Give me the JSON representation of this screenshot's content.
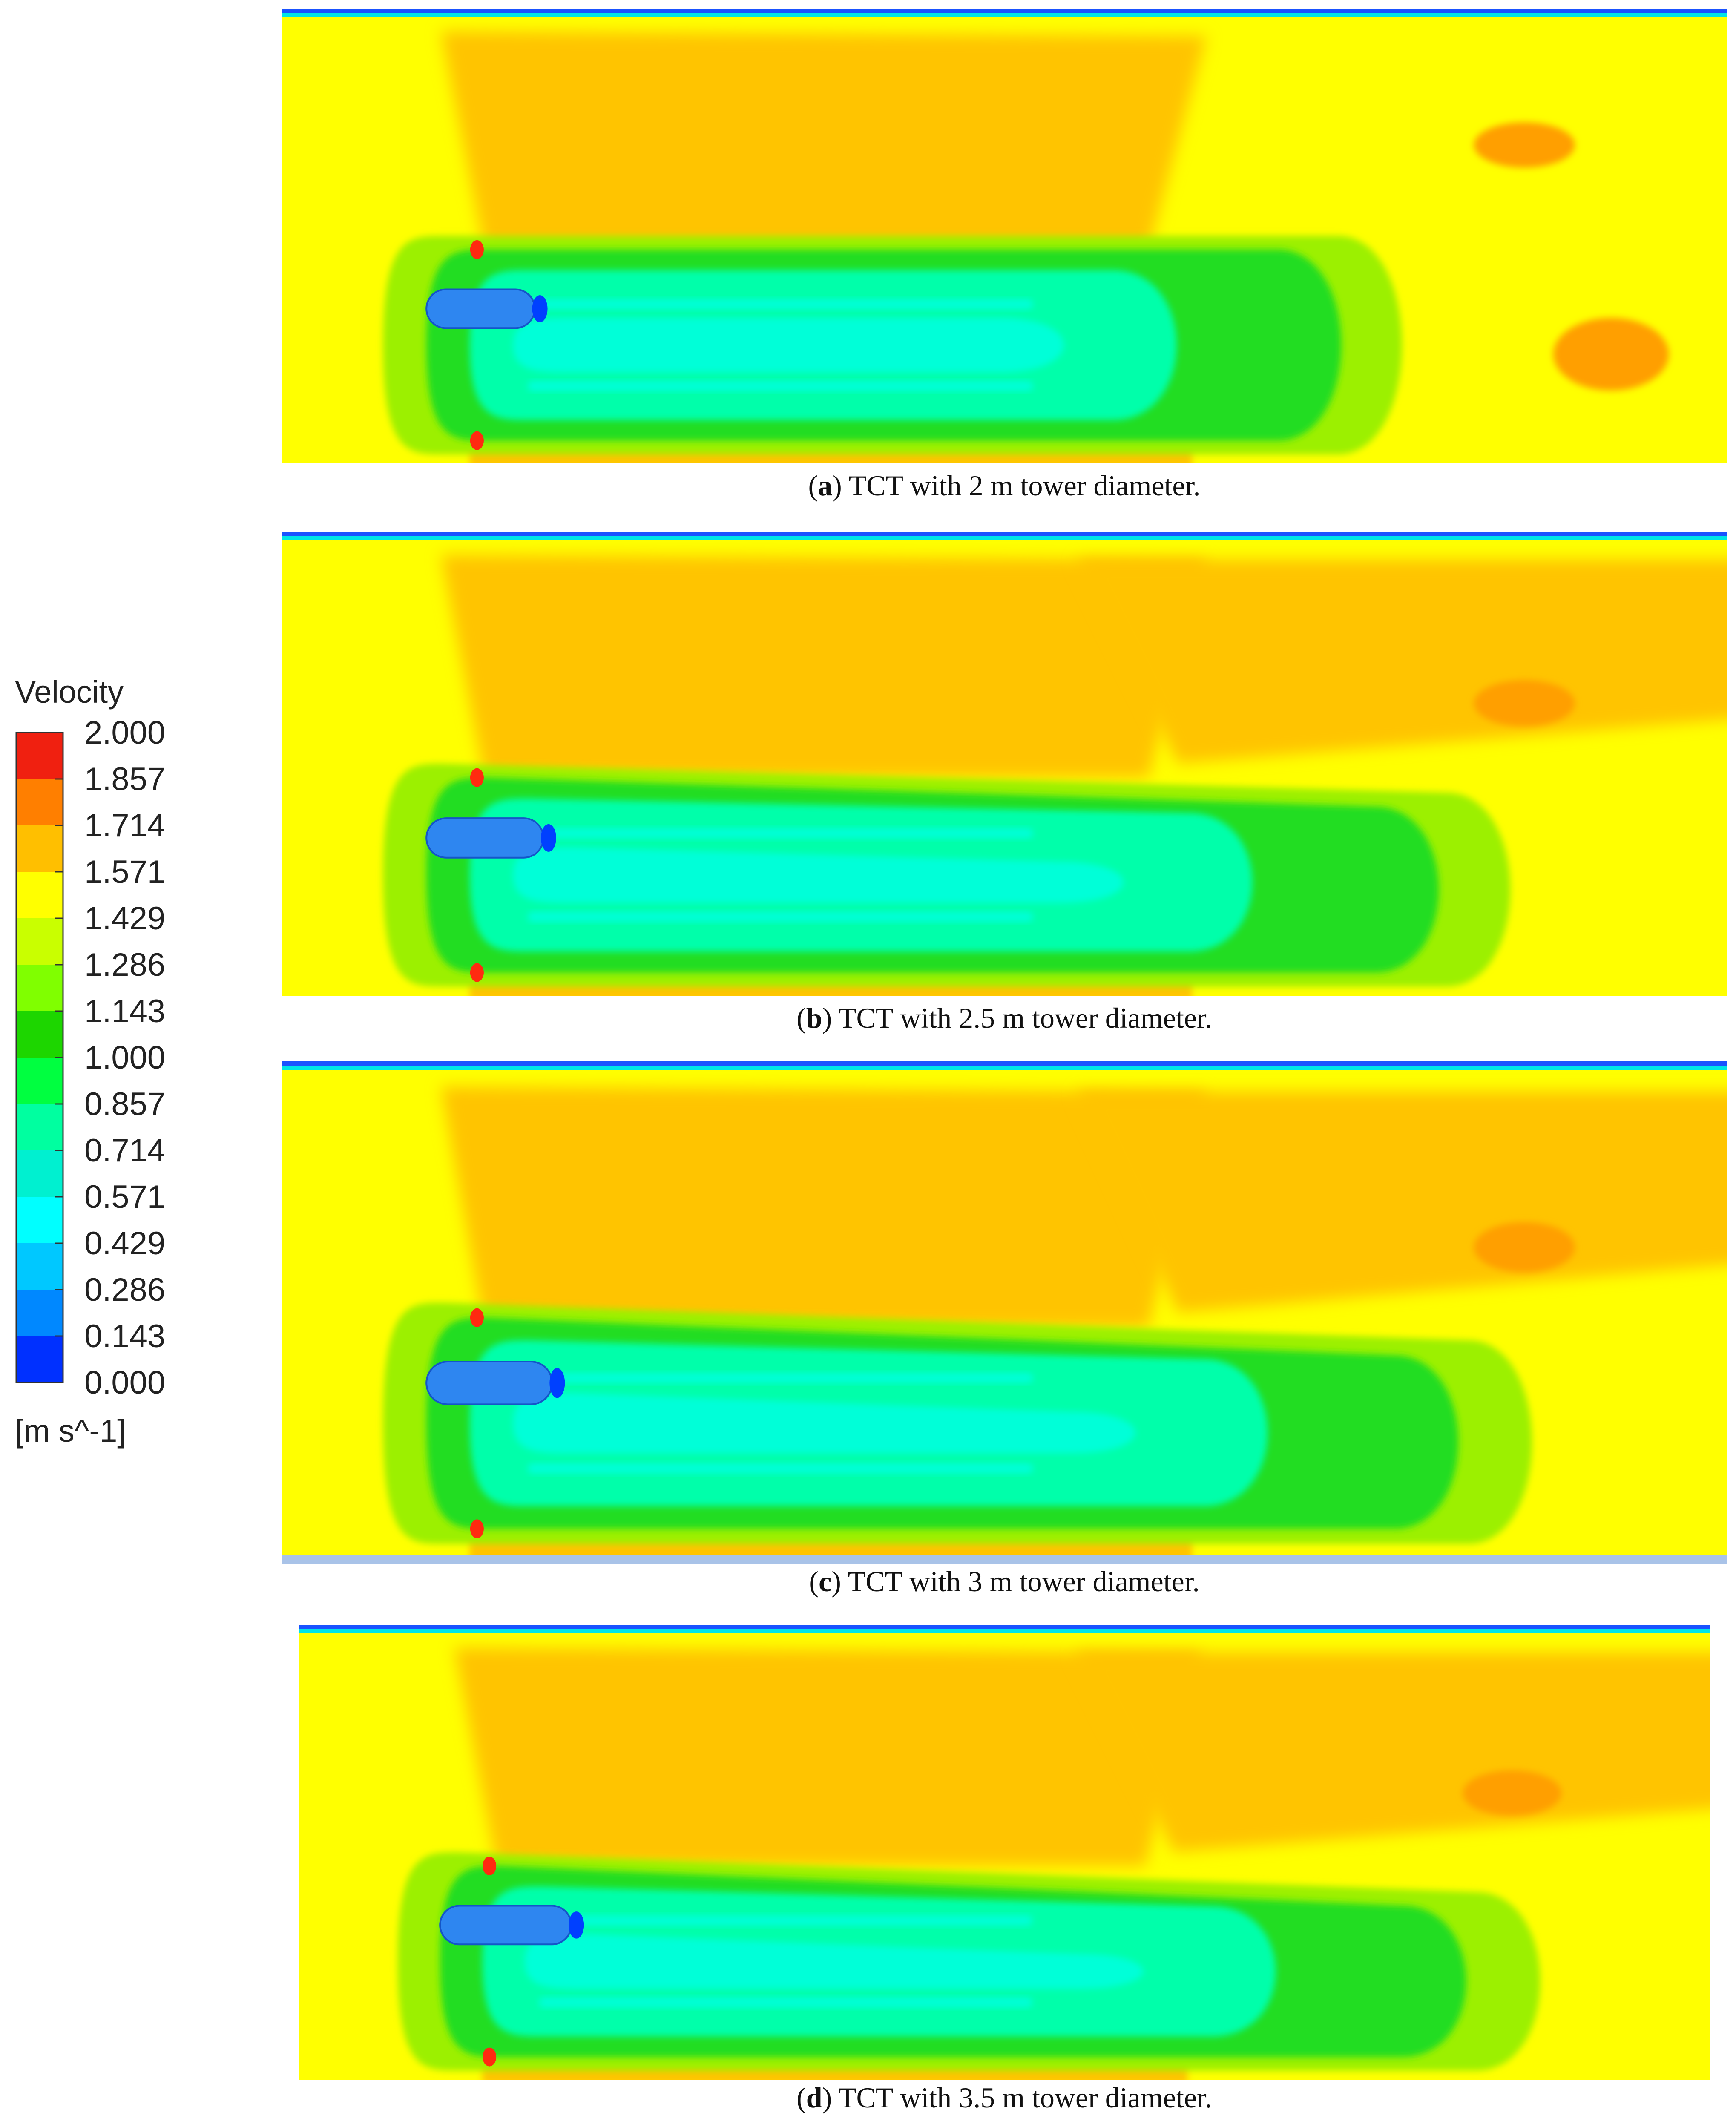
{
  "legend": {
    "title": "Velocity",
    "unit": "[m s^-1]",
    "ticks": [
      "2.000",
      "1.857",
      "1.714",
      "1.571",
      "1.429",
      "1.286",
      "1.143",
      "1.000",
      "0.857",
      "0.714",
      "0.571",
      "0.429",
      "0.286",
      "0.143",
      "0.000"
    ],
    "band_colors": [
      "#f02010",
      "#ff7f00",
      "#ffbf00",
      "#ffff00",
      "#c9ff00",
      "#80ff00",
      "#1dd600",
      "#00ff40",
      "#00ffa0",
      "#00f0d0",
      "#00ffff",
      "#00c8ff",
      "#0088ff",
      "#0030ff"
    ]
  },
  "panels": [
    {
      "letter": "a",
      "caption_rest": ") TCT with 2 m tower diameter."
    },
    {
      "letter": "b",
      "caption_rest": ") TCT with 2.5 m tower diameter."
    },
    {
      "letter": "c",
      "caption_rest": ") TCT with 3 m tower diameter."
    },
    {
      "letter": "d",
      "caption_rest": ") TCT with 3.5 m tower diameter."
    }
  ],
  "colors": {
    "freestream": "#ffff00",
    "upper_zone": "#ffc400",
    "hot_spot": "#ff9f00",
    "wake_outer": "#9cf000",
    "wake_mid": "#22dd22",
    "wake_core": "#00ffaa",
    "wake_fast": "#00ffd8",
    "turbine": "#2e86f0",
    "turbine_tip": "#0040ff",
    "red_spot": "#ff2a10",
    "surface_top": "#1a52ff",
    "surface_cyan": "#00e5e5",
    "seabed": "#a9c3e8"
  },
  "chart_data": {
    "type": "heatmap",
    "quantity": "Velocity",
    "unit": "[m s^-1]",
    "range": [
      0.0,
      2.0
    ],
    "colorbar_ticks": [
      2.0,
      1.857,
      1.714,
      1.571,
      1.429,
      1.286,
      1.143,
      1.0,
      0.857,
      0.714,
      0.571,
      0.429,
      0.286,
      0.143,
      0.0
    ],
    "panels": [
      {
        "label": "(a) TCT with 2 m tower diameter."
      },
      {
        "label": "(b) TCT with 2.5 m tower diameter."
      },
      {
        "label": "(c) TCT with 3 m tower diameter."
      },
      {
        "label": "(d) TCT with 3.5 m tower diameter."
      }
    ]
  }
}
